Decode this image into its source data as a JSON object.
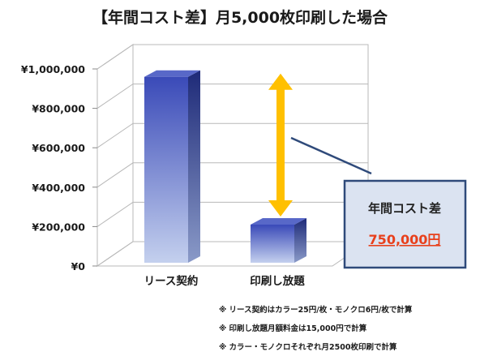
{
  "title": "【年間コスト差】月5,000枚印刷した場合",
  "chart_data": {
    "type": "bar",
    "categories": [
      "リース契約",
      "印刷し放題"
    ],
    "values": [
      960000,
      210000
    ],
    "ylim": [
      0,
      1000000
    ],
    "yticks": [
      0,
      200000,
      400000,
      600000,
      800000,
      1000000
    ],
    "ytick_labels": [
      "¥0",
      "¥200,000",
      "¥400,000",
      "¥600,000",
      "¥800,000",
      "¥1,000,000"
    ],
    "grid": true,
    "colors": {
      "bar_top": "#3a4ab8",
      "bar_bottom": "#c4d0ee",
      "arrow": "#ffc000",
      "box_bg": "#dbe3f1",
      "box_border": "#2f4a7a",
      "accent": "#e8401c"
    }
  },
  "callout": {
    "title": "年間コスト差",
    "value": "750,000円"
  },
  "notes": [
    "※ リース契約はカラー25円/枚・モノクロ6円/枚で計算",
    "※ 印刷し放題月額料金は15,000円で計算",
    "※ カラー・モノクロそれぞれ月2500枚印刷で計算"
  ]
}
